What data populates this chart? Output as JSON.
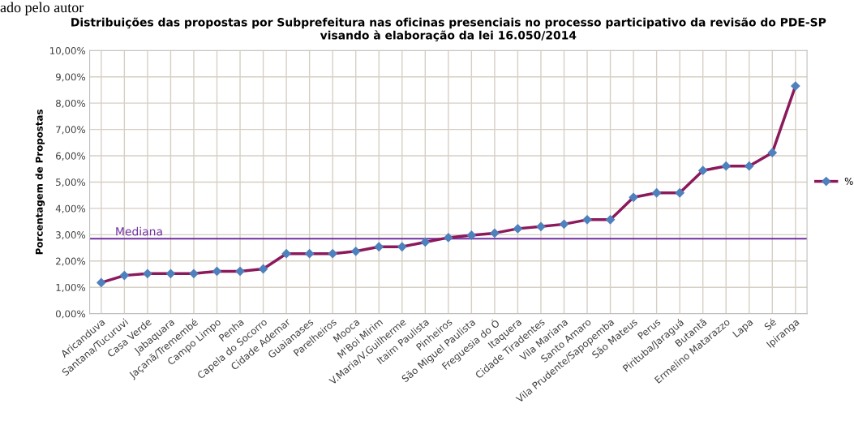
{
  "chart_data": {
    "type": "line",
    "title": "Distribuições das propostas por Subprefeitura nas oficinas presenciais no processo participativo da revisão do PDE-SP\nvisando à elaboração da lei 16.050/2014",
    "ylabel": "Porcentagem de Propostas",
    "annotations": [
      "ado pelo autor"
    ],
    "categories": [
      "Aricanduva",
      "Santana/Tucuruvi",
      "Casa Verde",
      "Jabaquara",
      "Jaçanã/Tremembé",
      "Campo Limpo",
      "Penha",
      "Capela do Socorro",
      "Cidade Ademar",
      "Guaianases",
      "Parelheiros",
      "Mooca",
      "M'Boi Mirim",
      "V.Maria/V.Guilherme",
      "Itaim Paulista",
      "Pinheiros",
      "São Miguel Paulista",
      "Freguesia do Ó",
      "Itaquera",
      "Cidade Tiradentes",
      "Vila Mariana",
      "Santo Amaro",
      "Vila Prudente/Sapopemba",
      "São Mateus",
      "Perus",
      "Pirituba/Jaraguá",
      "Butantã",
      "Ermelino Matarazzo",
      "Lapa",
      "Sé",
      "Ipiranga"
    ],
    "series": [
      {
        "name": "%",
        "color": "#8b1a5c",
        "values": [
          1.18,
          1.45,
          1.52,
          1.52,
          1.52,
          1.61,
          1.61,
          1.7,
          2.28,
          2.28,
          2.28,
          2.37,
          2.54,
          2.54,
          2.72,
          2.89,
          2.98,
          3.06,
          3.23,
          3.31,
          3.4,
          3.57,
          3.57,
          4.42,
          4.59,
          4.59,
          5.44,
          5.61,
          5.61,
          6.12,
          8.65
        ]
      }
    ],
    "ylim": [
      0,
      10
    ],
    "yticks": [
      {
        "value": 0,
        "label": "0,00%"
      },
      {
        "value": 1,
        "label": "1,00%"
      },
      {
        "value": 2,
        "label": "2,00%"
      },
      {
        "value": 3,
        "label": "3,00%"
      },
      {
        "value": 4,
        "label": "4,00%"
      },
      {
        "value": 5,
        "label": "5,00%"
      },
      {
        "value": 6,
        "label": "6,00%"
      },
      {
        "value": 7,
        "label": "7,00%"
      },
      {
        "value": 8,
        "label": "8,00%"
      },
      {
        "value": 9,
        "label": "9,00%"
      },
      {
        "value": 10,
        "label": "10,00%"
      }
    ],
    "ref_lines": [
      {
        "axis": "y",
        "value": 2.85,
        "label": "Mediana",
        "color": "#7030a0"
      }
    ],
    "grid": true,
    "legend": "right",
    "marker": "diamond",
    "line_style": "solid"
  }
}
